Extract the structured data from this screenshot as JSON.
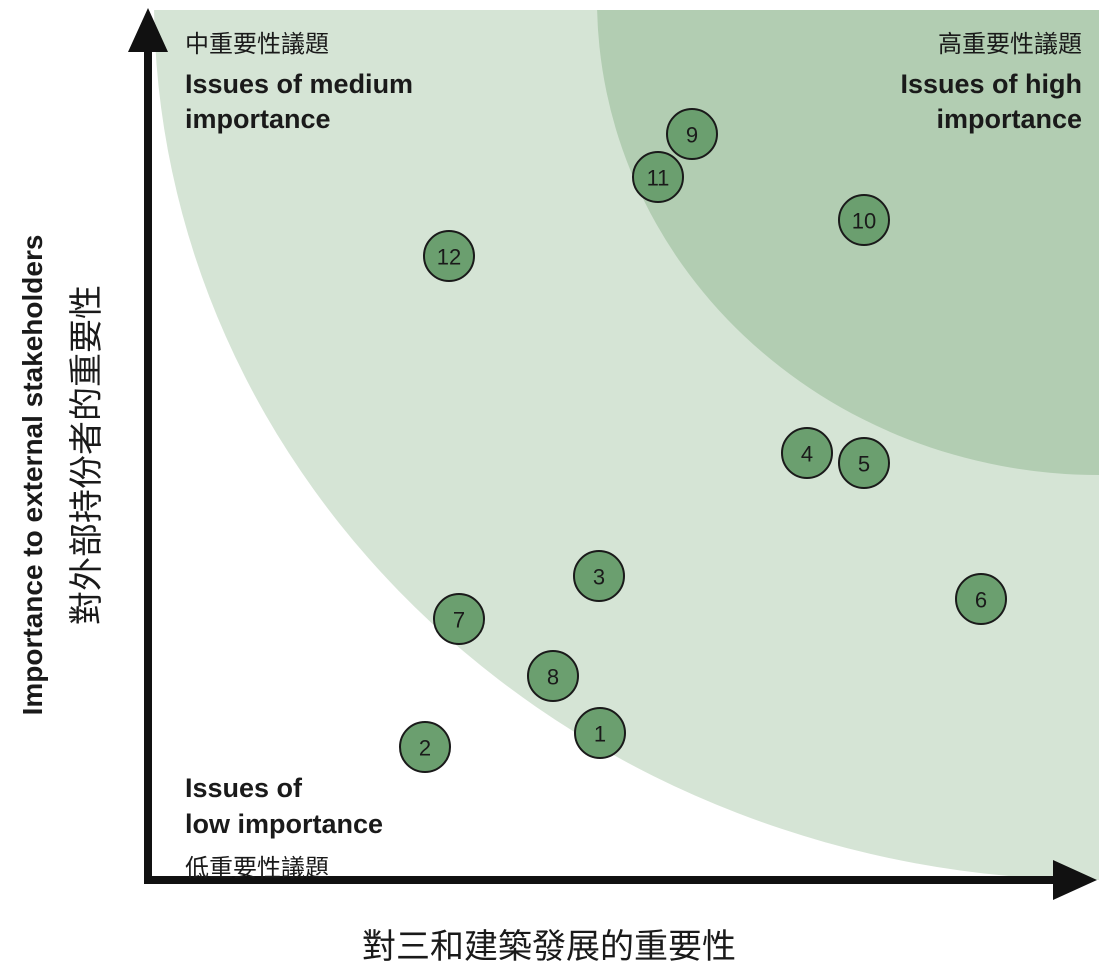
{
  "zones": {
    "medium": {
      "label_zh": "中重要性議題",
      "label_en": [
        "Issues of medium",
        "importance"
      ]
    },
    "high": {
      "label_zh": "高重要性議題",
      "label_en": [
        "Issues of high",
        "importance"
      ]
    },
    "low": {
      "label_zh": "低重要性議題",
      "label_en": [
        "Issues of",
        "low importance"
      ]
    }
  },
  "axes": {
    "y_label_en": "Importance to external stakeholders",
    "y_label_zh": "對外部持份者的重要性",
    "x_label_zh": "對三和建築發展的重要性"
  },
  "nodes": [
    {
      "label": "1"
    },
    {
      "label": "2"
    },
    {
      "label": "3"
    },
    {
      "label": "4"
    },
    {
      "label": "5"
    },
    {
      "label": "6"
    },
    {
      "label": "7"
    },
    {
      "label": "8"
    },
    {
      "label": "9"
    },
    {
      "label": "10"
    },
    {
      "label": "11"
    },
    {
      "label": "12"
    }
  ]
}
